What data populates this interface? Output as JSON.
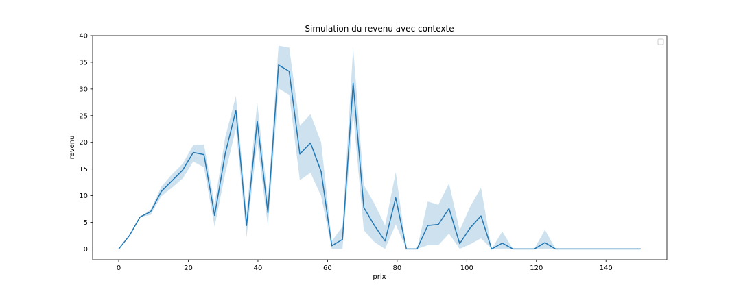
{
  "chart_data": {
    "type": "line",
    "title": "Simulation du revenu avec contexte",
    "xlabel": "prix",
    "ylabel": "revenu",
    "xlim": [
      -7.5,
      157.5
    ],
    "ylim": [
      -2,
      40
    ],
    "xticks": [
      0,
      20,
      40,
      60,
      80,
      100,
      120,
      140
    ],
    "yticks": [
      0,
      5,
      10,
      15,
      20,
      25,
      30,
      35,
      40
    ],
    "grid": false,
    "legend": "top-right",
    "series": [
      {
        "color": "#1f77b4",
        "band_color": "#1f77b4",
        "x": [
          0,
          3.06,
          6.12,
          9.18,
          12.24,
          15.31,
          18.37,
          21.43,
          24.49,
          27.55,
          30.61,
          33.67,
          36.73,
          39.8,
          42.86,
          45.92,
          48.98,
          52.04,
          55.1,
          58.16,
          61.22,
          64.29,
          67.35,
          70.41,
          73.47,
          76.53,
          79.59,
          82.65,
          85.71,
          88.78,
          91.84,
          94.9,
          97.96,
          101.02,
          104.08,
          107.14,
          110.2,
          113.27,
          116.33,
          119.39,
          122.45,
          125.51,
          128.57,
          131.63,
          134.69,
          137.76,
          140.82,
          143.88,
          146.94,
          150
        ],
        "y": [
          0,
          2.5,
          6,
          7,
          10.8,
          12.8,
          14.8,
          18.1,
          17.7,
          6.3,
          17.9,
          26,
          4.4,
          24,
          6.8,
          34.5,
          33.3,
          17.8,
          19.9,
          14.5,
          0.6,
          1.8,
          31.1,
          7.8,
          4.4,
          1.5,
          9.6,
          0,
          0,
          4.4,
          4.6,
          7.6,
          1,
          4,
          6.2,
          0,
          1.1,
          0,
          0,
          0,
          1.2,
          0,
          0,
          0,
          0,
          0,
          0,
          0,
          0,
          0
        ],
        "ci_upper": [
          0,
          2.5,
          6,
          7.4,
          11.7,
          14,
          16,
          19.5,
          19.6,
          8.4,
          21,
          28.7,
          6.8,
          27.5,
          9.3,
          38.1,
          37.8,
          23.1,
          25.3,
          20,
          1.5,
          4.2,
          37.8,
          12,
          8.5,
          4.4,
          14.4,
          0,
          0,
          8.9,
          8.3,
          12.3,
          3.5,
          8,
          11.5,
          0,
          3.3,
          0,
          0,
          0,
          3.6,
          0,
          0,
          0,
          0,
          0,
          0,
          0,
          0,
          0
        ],
        "ci_lower": [
          0,
          2.5,
          6,
          6.4,
          9.9,
          11.5,
          13.2,
          16.4,
          15.3,
          4.2,
          14.2,
          22.6,
          2.2,
          20.2,
          4.3,
          30.1,
          28.9,
          12.9,
          14.3,
          9.9,
          0,
          0,
          25.5,
          3.5,
          1.3,
          0,
          4.6,
          0,
          0,
          0.7,
          0.7,
          2.9,
          0,
          0.9,
          2,
          0,
          0,
          0,
          0,
          0,
          0,
          0,
          0,
          0,
          0,
          0,
          0,
          0,
          0,
          0
        ]
      }
    ]
  }
}
